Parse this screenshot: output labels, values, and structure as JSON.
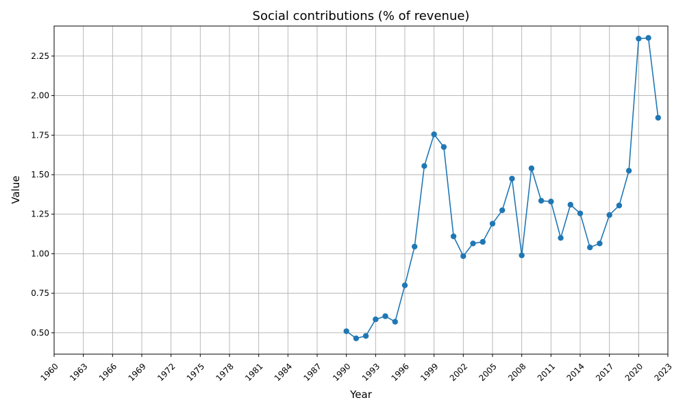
{
  "chart_data": {
    "type": "line",
    "title": "Social contributions (% of revenue)",
    "xlabel": "Year",
    "ylabel": "Value",
    "xlim": [
      1960,
      2023
    ],
    "ylim": [
      0.365,
      2.44
    ],
    "grid": true,
    "line_color": "#1f77b4",
    "marker": "circle",
    "x_ticks": [
      1960,
      1963,
      1966,
      1969,
      1972,
      1975,
      1978,
      1981,
      1984,
      1987,
      1990,
      1993,
      1996,
      1999,
      2002,
      2005,
      2008,
      2011,
      2014,
      2017,
      2020,
      2023
    ],
    "y_ticks": [
      0.5,
      0.75,
      1.0,
      1.25,
      1.5,
      1.75,
      2.0,
      2.25
    ],
    "y_tick_labels": [
      "0.50",
      "0.75",
      "1.00",
      "1.25",
      "1.50",
      "1.75",
      "2.00",
      "2.25"
    ],
    "x": [
      1990,
      1991,
      1992,
      1993,
      1994,
      1995,
      1996,
      1997,
      1998,
      1999,
      2000,
      2001,
      2002,
      2003,
      2004,
      2005,
      2006,
      2007,
      2008,
      2009,
      2010,
      2011,
      2012,
      2013,
      2014,
      2015,
      2016,
      2017,
      2018,
      2019,
      2020,
      2021,
      2022
    ],
    "y": [
      0.51,
      0.465,
      0.48,
      0.585,
      0.605,
      0.57,
      0.8,
      1.045,
      1.555,
      1.755,
      1.675,
      1.11,
      0.985,
      1.065,
      1.075,
      1.19,
      1.275,
      1.475,
      0.99,
      1.54,
      1.335,
      1.33,
      1.1,
      1.31,
      1.255,
      1.04,
      1.065,
      1.245,
      1.305,
      1.525,
      2.36,
      2.365,
      1.86
    ]
  }
}
